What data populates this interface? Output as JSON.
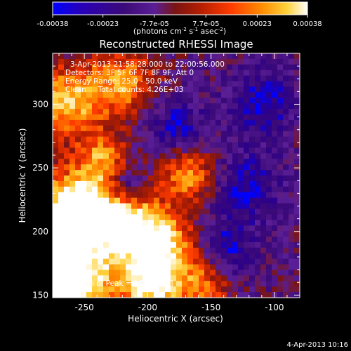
{
  "chart_data": {
    "type": "heatmap",
    "title": "Reconstructed RHESSI Image",
    "xlabel": "Heliocentric X (arcsec)",
    "ylabel": "Heliocentric Y (arcsec)",
    "xlim": [
      -275,
      -80
    ],
    "ylim": [
      148,
      340
    ],
    "x_ticks": [
      -250,
      -200,
      -150,
      -100
    ],
    "x_tick_labels": [
      "-250",
      "-200",
      "-150",
      "-100"
    ],
    "y_ticks": [
      150,
      200,
      250,
      300
    ],
    "y_tick_labels": [
      "150",
      "200",
      "250",
      "300"
    ],
    "colorbar": {
      "ticks": [
        -0.00038,
        -0.00023,
        -7.7e-05,
        7.7e-05,
        0.00023,
        0.00038
      ],
      "tick_labels": [
        "-0.00038",
        "-0.00023",
        "-7.7e-05",
        "7.7e-05",
        "0.00023",
        "0.00038"
      ],
      "units_prefix": "(photons cm",
      "units_sup1": "-2",
      "units_mid": " s",
      "units_sup2": "-1",
      "units_mid2": " asec",
      "units_sup3": "-2",
      "units_suffix": ")"
    },
    "annotations": {
      "time_range": "3-Apr-2013 21:58:28.000 to 22:00:56.000",
      "detectors": "Detectors: 3F 5F 6F 7F 8F 9F, Att 0",
      "energy_range": "Energy Range: 25.0 - 50.0 keV",
      "method": "Clean     Total counts: 4.26E+03",
      "peak": "Position of Peak = [-267,192]"
    },
    "grid": false,
    "colormap": [
      "#0000ff",
      "#2a008c",
      "#3c0a78",
      "#5a1e96",
      "#7a1414",
      "#b41e00",
      "#ff3c00",
      "#ff8c00",
      "#ffd23c",
      "#ffffff"
    ]
  },
  "footer": {
    "timestamp": "4-Apr-2013 10:16"
  }
}
